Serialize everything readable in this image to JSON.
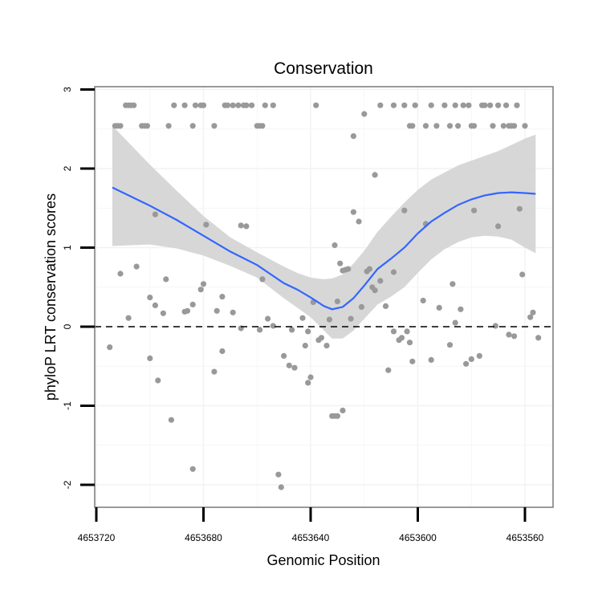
{
  "chart_data": {
    "type": "scatter",
    "title": "Conservation",
    "xlabel": "Genomic Position",
    "ylabel": "phyloP LRT conservation scores",
    "xlim": [
      4653720,
      4653560
    ],
    "ylim": [
      -2.25,
      3
    ],
    "x_ticks": [
      4653720,
      4653680,
      4653640,
      4653600,
      4653560
    ],
    "y_ticks": [
      -2,
      -1,
      0,
      1,
      2,
      3
    ],
    "x_tick_labels": [
      "4653720",
      "4653680",
      "4653640",
      "4653600",
      "4653560"
    ],
    "y_tick_labels": [
      "-2",
      "-1",
      "0",
      "1",
      "2",
      "3"
    ],
    "reference_line_y": 0,
    "colors": {
      "points": "#999999",
      "smooth": "#3366FF",
      "ribbon": "#D3D3D3",
      "panel_border": "#808080",
      "grid": "#f2f2f2"
    },
    "points": [
      [
        4653713,
        2.54
      ],
      [
        4653712,
        2.54
      ],
      [
        4653711,
        2.54
      ],
      [
        4653709,
        2.8
      ],
      [
        4653708,
        2.8
      ],
      [
        4653707,
        2.8
      ],
      [
        4653706,
        2.8
      ],
      [
        4653703,
        2.54
      ],
      [
        4653702,
        2.54
      ],
      [
        4653701,
        2.54
      ],
      [
        4653693,
        2.54
      ],
      [
        4653691,
        2.8
      ],
      [
        4653687,
        2.8
      ],
      [
        4653684,
        2.54
      ],
      [
        4653683,
        2.8
      ],
      [
        4653681,
        2.8
      ],
      [
        4653680,
        2.8
      ],
      [
        4653676,
        2.54
      ],
      [
        4653672,
        2.8
      ],
      [
        4653671,
        2.8
      ],
      [
        4653669,
        2.8
      ],
      [
        4653667,
        2.8
      ],
      [
        4653665,
        2.8
      ],
      [
        4653664,
        2.8
      ],
      [
        4653662,
        2.8
      ],
      [
        4653660,
        2.54
      ],
      [
        4653659,
        2.54
      ],
      [
        4653658,
        2.54
      ],
      [
        4653657,
        2.8
      ],
      [
        4653654,
        2.8
      ],
      [
        4653638,
        2.8
      ],
      [
        4653614,
        2.8
      ],
      [
        4653609,
        2.8
      ],
      [
        4653605,
        2.8
      ],
      [
        4653603,
        2.54
      ],
      [
        4653602,
        2.54
      ],
      [
        4653601,
        2.8
      ],
      [
        4653597,
        2.54
      ],
      [
        4653595,
        2.8
      ],
      [
        4653593,
        2.54
      ],
      [
        4653590,
        2.8
      ],
      [
        4653588,
        2.54
      ],
      [
        4653586,
        2.8
      ],
      [
        4653585,
        2.54
      ],
      [
        4653583,
        2.8
      ],
      [
        4653581,
        2.8
      ],
      [
        4653580,
        2.54
      ],
      [
        4653579,
        2.54
      ],
      [
        4653576,
        2.8
      ],
      [
        4653575,
        2.8
      ],
      [
        4653573,
        2.8
      ],
      [
        4653572,
        2.54
      ],
      [
        4653570,
        2.8
      ],
      [
        4653568,
        2.54
      ],
      [
        4653567,
        2.8
      ],
      [
        4653566,
        2.54
      ],
      [
        4653565,
        2.54
      ],
      [
        4653564,
        2.54
      ],
      [
        4653563,
        2.8
      ],
      [
        4653560,
        2.54
      ],
      [
        4653620,
        2.69
      ],
      [
        4653624,
        2.41
      ],
      [
        4653616,
        1.92
      ],
      [
        4653624,
        1.45
      ],
      [
        4653622,
        1.33
      ],
      [
        4653605,
        1.47
      ],
      [
        4653597,
        1.3
      ],
      [
        4653579,
        1.47
      ],
      [
        4653570,
        1.27
      ],
      [
        4653562,
        1.49
      ],
      [
        4653698,
        1.42
      ],
      [
        4653679,
        1.29
      ],
      [
        4653666,
        1.28
      ],
      [
        4653664,
        1.27
      ],
      [
        4653631,
        1.03
      ],
      [
        4653629,
        0.8
      ],
      [
        4653628,
        0.71
      ],
      [
        4653627,
        0.72
      ],
      [
        4653626,
        0.73
      ],
      [
        4653619,
        0.7
      ],
      [
        4653618,
        0.73
      ],
      [
        4653711,
        0.67
      ],
      [
        4653705,
        0.76
      ],
      [
        4653694,
        0.6
      ],
      [
        4653681,
        0.47
      ],
      [
        4653673,
        0.38
      ],
      [
        4653675,
        0.2
      ],
      [
        4653658,
        0.6
      ],
      [
        4653614,
        0.58
      ],
      [
        4653609,
        0.69
      ],
      [
        4653616,
        0.46
      ],
      [
        4653617,
        0.5
      ],
      [
        4653584,
        0.22
      ],
      [
        4653587,
        0.54
      ],
      [
        4653561,
        0.66
      ],
      [
        4653715,
        -0.26
      ],
      [
        4653708,
        0.11
      ],
      [
        4653700,
        0.37
      ],
      [
        4653698,
        0.27
      ],
      [
        4653695,
        0.17
      ],
      [
        4653687,
        0.19
      ],
      [
        4653686,
        0.2
      ],
      [
        4653684,
        0.28
      ],
      [
        4653680,
        0.54
      ],
      [
        4653669,
        0.18
      ],
      [
        4653666,
        -0.02
      ],
      [
        4653659,
        -0.04
      ],
      [
        4653656,
        0.1
      ],
      [
        4653654,
        0.01
      ],
      [
        4653647,
        -0.04
      ],
      [
        4653643,
        0.11
      ],
      [
        4653641,
        -0.06
      ],
      [
        4653639,
        0.31
      ],
      [
        4653637,
        -0.17
      ],
      [
        4653633,
        0.09
      ],
      [
        4653630,
        0.32
      ],
      [
        4653625,
        0.1
      ],
      [
        4653621,
        0.25
      ],
      [
        4653612,
        0.26
      ],
      [
        4653609,
        -0.06
      ],
      [
        4653607,
        -0.17
      ],
      [
        4653606,
        -0.14
      ],
      [
        4653604,
        -0.06
      ],
      [
        4653603,
        -0.2
      ],
      [
        4653602,
        -0.44
      ],
      [
        4653598,
        0.33
      ],
      [
        4653595,
        -0.42
      ],
      [
        4653592,
        0.24
      ],
      [
        4653588,
        -0.23
      ],
      [
        4653586,
        0.05
      ],
      [
        4653580,
        -0.41
      ],
      [
        4653577,
        -0.37
      ],
      [
        4653571,
        0.01
      ],
      [
        4653566,
        -0.1
      ],
      [
        4653564,
        -0.12
      ],
      [
        4653558,
        0.12
      ],
      [
        4653557,
        0.18
      ],
      [
        4653555,
        -0.14
      ],
      [
        4653700,
        -0.4
      ],
      [
        4653697,
        -0.68
      ],
      [
        4653692,
        -1.18
      ],
      [
        4653684,
        -1.8
      ],
      [
        4653676,
        -0.57
      ],
      [
        4653673,
        -0.31
      ],
      [
        4653650,
        -0.37
      ],
      [
        4653648,
        -0.49
      ],
      [
        4653646,
        -0.52
      ],
      [
        4653642,
        -0.24
      ],
      [
        4653641,
        -0.71
      ],
      [
        4653640,
        -0.64
      ],
      [
        4653636,
        -0.14
      ],
      [
        4653634,
        -0.24
      ],
      [
        4653632,
        -1.13
      ],
      [
        4653631,
        -1.13
      ],
      [
        4653630,
        -1.13
      ],
      [
        4653628,
        -1.06
      ],
      [
        4653611,
        -0.55
      ],
      [
        4653582,
        -0.47
      ],
      [
        4653652,
        -1.87
      ],
      [
        4653651,
        -2.03
      ]
    ],
    "smooth": [
      [
        4653714,
        1.76
      ],
      [
        4653700,
        1.53
      ],
      [
        4653690,
        1.35
      ],
      [
        4653680,
        1.15
      ],
      [
        4653670,
        0.95
      ],
      [
        4653660,
        0.78
      ],
      [
        4653650,
        0.55
      ],
      [
        4653645,
        0.47
      ],
      [
        4653640,
        0.37
      ],
      [
        4653635,
        0.26
      ],
      [
        4653632,
        0.22
      ],
      [
        4653628,
        0.25
      ],
      [
        4653624,
        0.36
      ],
      [
        4653620,
        0.52
      ],
      [
        4653615,
        0.73
      ],
      [
        4653610,
        0.86
      ],
      [
        4653605,
        1.0
      ],
      [
        4653600,
        1.18
      ],
      [
        4653595,
        1.33
      ],
      [
        4653590,
        1.44
      ],
      [
        4653585,
        1.54
      ],
      [
        4653580,
        1.61
      ],
      [
        4653575,
        1.66
      ],
      [
        4653570,
        1.69
      ],
      [
        4653565,
        1.7
      ],
      [
        4653560,
        1.69
      ],
      [
        4653556,
        1.68
      ]
    ],
    "ribbon_upper": [
      [
        4653714,
        2.54
      ],
      [
        4653700,
        2.05
      ],
      [
        4653690,
        1.72
      ],
      [
        4653680,
        1.4
      ],
      [
        4653670,
        1.13
      ],
      [
        4653660,
        0.94
      ],
      [
        4653650,
        0.76
      ],
      [
        4653645,
        0.68
      ],
      [
        4653640,
        0.62
      ],
      [
        4653635,
        0.6
      ],
      [
        4653632,
        0.61
      ],
      [
        4653628,
        0.66
      ],
      [
        4653624,
        0.8
      ],
      [
        4653620,
        0.96
      ],
      [
        4653615,
        1.2
      ],
      [
        4653610,
        1.39
      ],
      [
        4653605,
        1.57
      ],
      [
        4653600,
        1.73
      ],
      [
        4653595,
        1.86
      ],
      [
        4653590,
        1.95
      ],
      [
        4653585,
        2.04
      ],
      [
        4653580,
        2.1
      ],
      [
        4653575,
        2.16
      ],
      [
        4653570,
        2.22
      ],
      [
        4653565,
        2.3
      ],
      [
        4653560,
        2.38
      ],
      [
        4653556,
        2.43
      ]
    ],
    "ribbon_lower": [
      [
        4653714,
        1.02
      ],
      [
        4653700,
        1.04
      ],
      [
        4653690,
        0.99
      ],
      [
        4653680,
        0.9
      ],
      [
        4653670,
        0.77
      ],
      [
        4653660,
        0.62
      ],
      [
        4653650,
        0.36
      ],
      [
        4653645,
        0.24
      ],
      [
        4653640,
        0.12
      ],
      [
        4653635,
        -0.05
      ],
      [
        4653632,
        -0.15
      ],
      [
        4653628,
        -0.15
      ],
      [
        4653624,
        -0.05
      ],
      [
        4653620,
        0.1
      ],
      [
        4653615,
        0.28
      ],
      [
        4653610,
        0.38
      ],
      [
        4653605,
        0.5
      ],
      [
        4653600,
        0.68
      ],
      [
        4653595,
        0.85
      ],
      [
        4653590,
        0.98
      ],
      [
        4653585,
        1.07
      ],
      [
        4653580,
        1.13
      ],
      [
        4653575,
        1.15
      ],
      [
        4653570,
        1.14
      ],
      [
        4653565,
        1.1
      ],
      [
        4653560,
        1.0
      ],
      [
        4653556,
        0.93
      ]
    ]
  }
}
